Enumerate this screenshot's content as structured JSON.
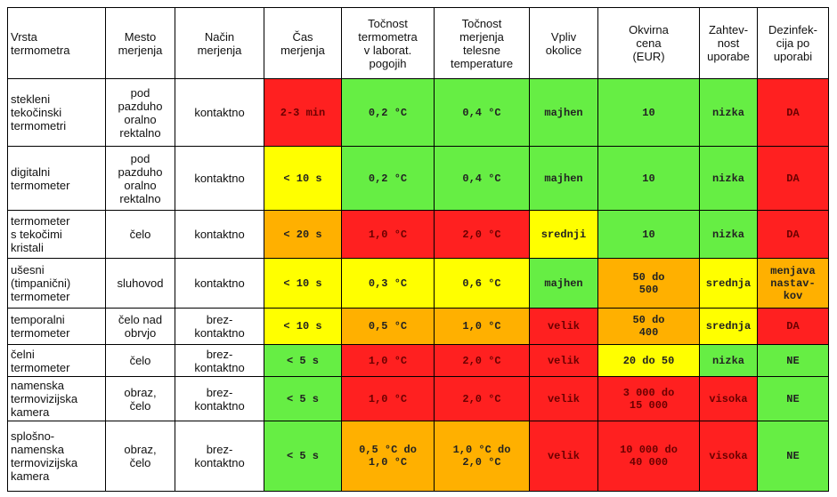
{
  "table": {
    "header": [
      "Vrsta\ntermometra",
      "Mesto\nmerjenja",
      "Način\nmerjenja",
      "Čas\nmerjenja",
      "Točnost\ntermometra\nv laborat.\npogojih",
      "Točnost\nmerjenja\ntelesne\ntemperature",
      "Vpliv\nokolice",
      "Okvirna\ncena\n(EUR)",
      "Zahtev-\nnost\nuporabe",
      "Dezinfek-\ncija po\nuporabi"
    ],
    "rows": [
      [
        "stekleni\ntekočinski\ntermometri",
        "pod\npazduho\noralno\nrektalno",
        "kontaktno",
        "2-3 min",
        "0,2 °C",
        "0,4 °C",
        "majhen",
        "10",
        "nizka",
        "DA"
      ],
      [
        "digitalni\ntermometer",
        "pod\npazduho\noralno\nrektalno",
        "kontaktno",
        "< 10 s",
        "0,2 °C",
        "0,4 °C",
        "majhen",
        "10",
        "nizka",
        "DA"
      ],
      [
        "termometer\ns tekočimi\nkristali",
        "čelo",
        "kontaktno",
        "< 20 s",
        "1,0 °C",
        "2,0 °C",
        "srednji",
        "10",
        "nizka",
        "DA"
      ],
      [
        "ušesni\n(timpanični)\ntermometer",
        "sluhovod",
        "kontaktno",
        "< 10 s",
        "0,3 °C",
        "0,6 °C",
        "majhen",
        "50 do\n500",
        "srednja",
        "menjava\nnastav-\nkov"
      ],
      [
        "temporalni\ntermometer",
        "čelo nad\nobrvjo",
        "brez-\nkontaktno",
        "< 10 s",
        "0,5 °C",
        "1,0 °C",
        "velik",
        "50 do\n400",
        "srednja",
        "DA"
      ],
      [
        "čelni\ntermometer",
        "čelo",
        "brez-\nkontaktno",
        "< 5 s",
        "1,0 °C",
        "2,0 °C",
        "velik",
        "20 do 50",
        "nizka",
        "NE"
      ],
      [
        "namenska\ntermovizijska\nkamera",
        "obraz,\nčelo",
        "brez-\nkontaktno",
        "< 5 s",
        "1,0 °C",
        "2,0 °C",
        "velik",
        "3 000 do\n15 000",
        "visoka",
        "NE"
      ],
      [
        "splošno-\nnamenska\ntermovizijska\nkamera",
        "obraz,\nčelo",
        "brez-\nkontaktno",
        "< 5 s",
        "0,5 °C do\n1,0 °C",
        "1,0 °C do\n2,0 °C",
        "velik",
        "10 000 do\n40 000",
        "visoka",
        "NE"
      ]
    ],
    "colors": [
      [
        "#ffffff",
        "#ffffff",
        "#ffffff",
        "#ff2020",
        "#66ee44",
        "#66ee44",
        "#66ee44",
        "#66ee44",
        "#66ee44",
        "#ff2020"
      ],
      [
        "#ffffff",
        "#ffffff",
        "#ffffff",
        "#ffff00",
        "#66ee44",
        "#66ee44",
        "#66ee44",
        "#66ee44",
        "#66ee44",
        "#ff2020"
      ],
      [
        "#ffffff",
        "#ffffff",
        "#ffffff",
        "#ffb000",
        "#ff2020",
        "#ff2020",
        "#ffff00",
        "#66ee44",
        "#66ee44",
        "#ff2020"
      ],
      [
        "#ffffff",
        "#ffffff",
        "#ffffff",
        "#ffff00",
        "#ffff00",
        "#ffff00",
        "#66ee44",
        "#ffb000",
        "#ffff00",
        "#ffb000"
      ],
      [
        "#ffffff",
        "#ffffff",
        "#ffffff",
        "#ffff00",
        "#ffb000",
        "#ffb000",
        "#ff2020",
        "#ffb000",
        "#ffff00",
        "#ff2020"
      ],
      [
        "#ffffff",
        "#ffffff",
        "#ffffff",
        "#66ee44",
        "#ff2020",
        "#ff2020",
        "#ff2020",
        "#ffff00",
        "#66ee44",
        "#66ee44"
      ],
      [
        "#ffffff",
        "#ffffff",
        "#ffffff",
        "#66ee44",
        "#ff2020",
        "#ff2020",
        "#ff2020",
        "#ff2020",
        "#ff2020",
        "#66ee44"
      ],
      [
        "#ffffff",
        "#ffffff",
        "#ffffff",
        "#66ee44",
        "#ffb000",
        "#ffb000",
        "#ff2020",
        "#ff2020",
        "#ff2020",
        "#66ee44"
      ]
    ]
  }
}
